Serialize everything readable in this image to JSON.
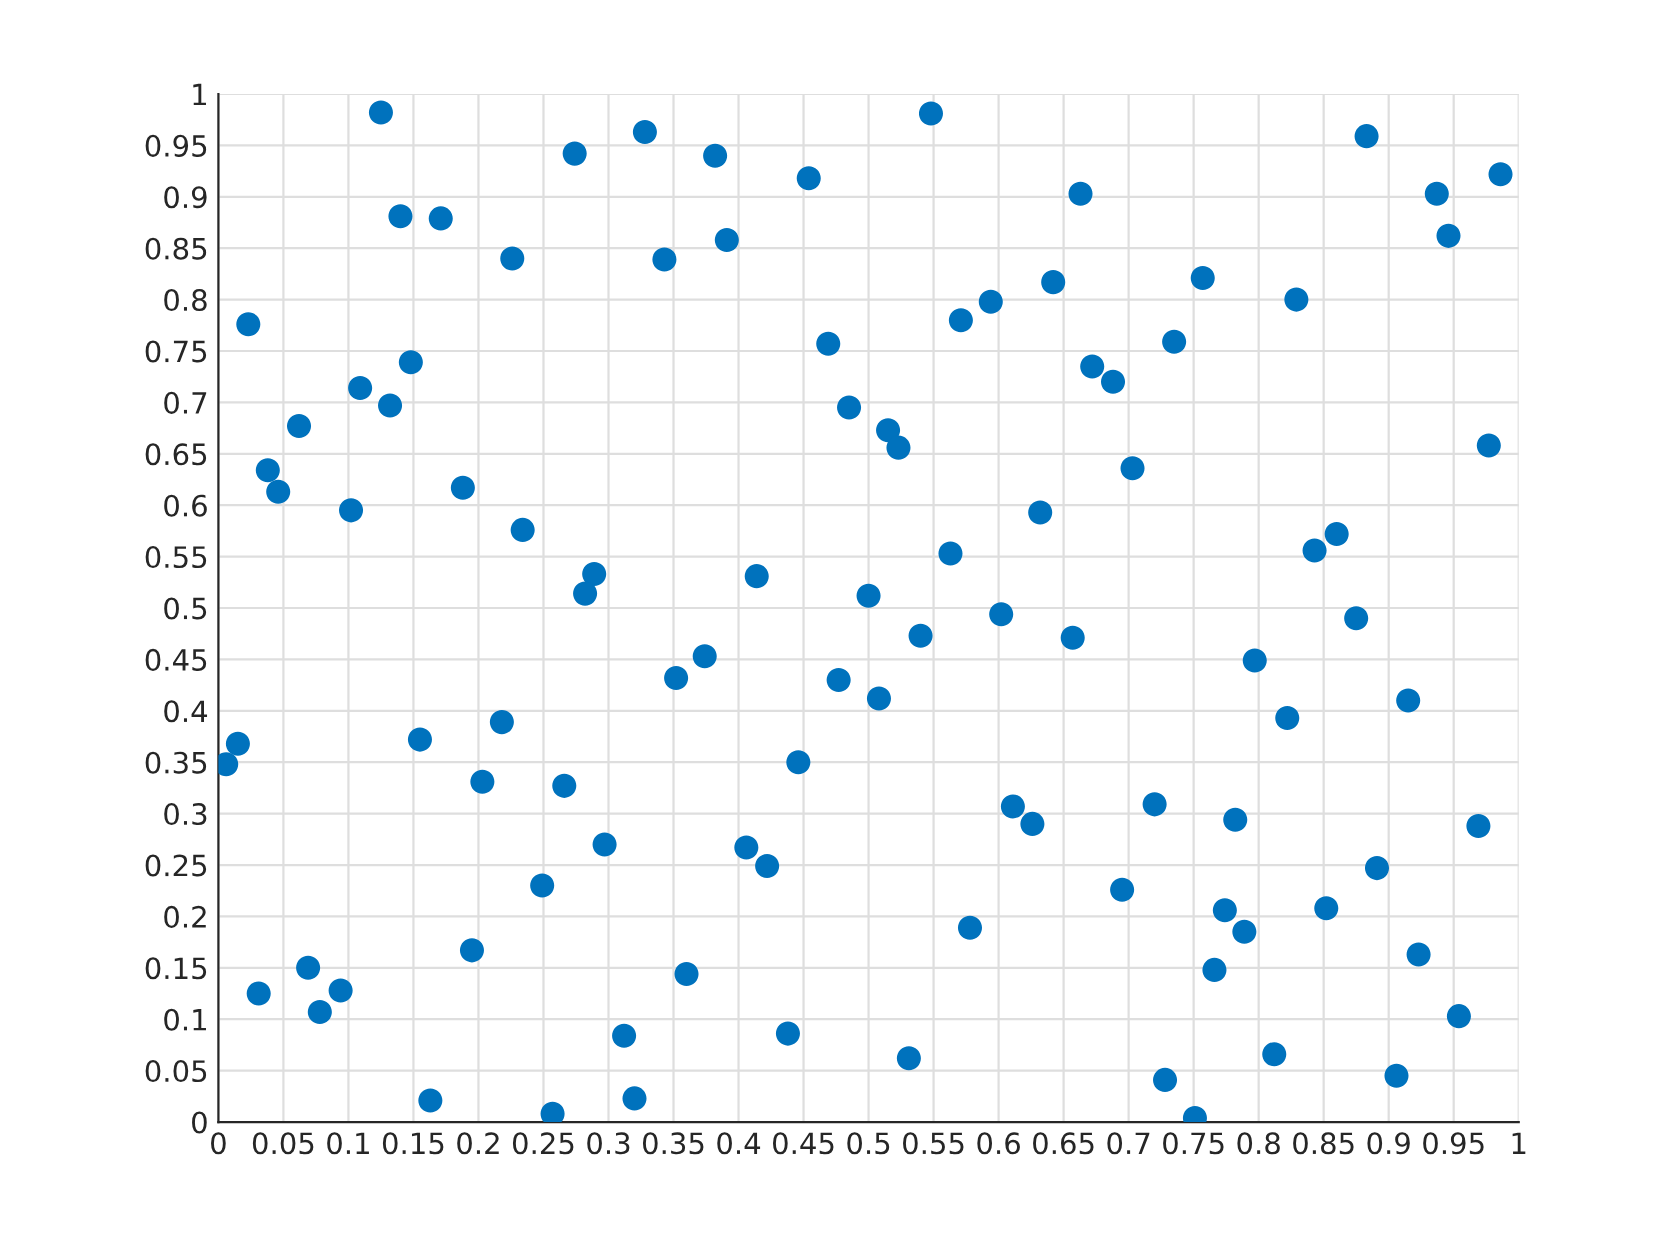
{
  "chart_data": {
    "type": "scatter",
    "marker": "circle",
    "grid": true,
    "xlim": [
      0,
      1
    ],
    "ylim": [
      0,
      1
    ],
    "xticks": [
      0,
      0.05,
      0.1,
      0.15,
      0.2,
      0.25,
      0.3,
      0.35,
      0.4,
      0.45,
      0.5,
      0.55,
      0.6,
      0.65,
      0.7,
      0.75,
      0.8,
      0.85,
      0.9,
      0.95,
      1
    ],
    "yticks": [
      0,
      0.05,
      0.1,
      0.15,
      0.2,
      0.25,
      0.3,
      0.35,
      0.4,
      0.45,
      0.5,
      0.55,
      0.6,
      0.65,
      0.7,
      0.75,
      0.8,
      0.85,
      0.9,
      0.95,
      1
    ],
    "x": [
      0.125,
      0.274,
      0.328,
      0.382,
      0.548,
      0.883,
      0.986,
      0.937,
      0.946,
      0.454,
      0.14,
      0.171,
      0.391,
      0.343,
      0.226,
      0.663,
      0.757,
      0.642,
      0.594,
      0.571,
      0.829,
      0.023,
      0.469,
      0.735,
      0.672,
      0.688,
      0.148,
      0.109,
      0.132,
      0.485,
      0.062,
      0.515,
      0.523,
      0.977,
      0.703,
      0.038,
      0.046,
      0.188,
      0.102,
      0.632,
      0.234,
      0.563,
      0.86,
      0.843,
      0.414,
      0.289,
      0.282,
      0.5,
      0.602,
      0.875,
      0.54,
      0.657,
      0.797,
      0.374,
      0.352,
      0.477,
      0.508,
      0.915,
      0.822,
      0.218,
      0.155,
      0.015,
      0.006,
      0.446,
      0.203,
      0.266,
      0.72,
      0.611,
      0.782,
      0.626,
      0.969,
      0.297,
      0.406,
      0.422,
      0.891,
      0.249,
      0.695,
      0.774,
      0.852,
      0.578,
      0.789,
      0.195,
      0.923,
      0.069,
      0.766,
      0.36,
      0.031,
      0.094,
      0.078,
      0.954,
      0.312,
      0.438,
      0.812,
      0.531,
      0.728,
      0.906,
      0.163,
      0.32,
      0.257,
      0.751
    ],
    "series": [
      {
        "color": "#0072bd",
        "values": [
          0.982,
          0.942,
          0.963,
          0.94,
          0.981,
          0.959,
          0.922,
          0.903,
          0.862,
          0.918,
          0.881,
          0.879,
          0.858,
          0.839,
          0.84,
          0.903,
          0.821,
          0.817,
          0.798,
          0.78,
          0.8,
          0.776,
          0.757,
          0.759,
          0.735,
          0.72,
          0.739,
          0.714,
          0.697,
          0.695,
          0.677,
          0.673,
          0.656,
          0.658,
          0.636,
          0.634,
          0.613,
          0.617,
          0.595,
          0.593,
          0.576,
          0.553,
          0.572,
          0.556,
          0.531,
          0.533,
          0.514,
          0.512,
          0.494,
          0.49,
          0.473,
          0.471,
          0.449,
          0.453,
          0.432,
          0.43,
          0.412,
          0.41,
          0.393,
          0.389,
          0.372,
          0.368,
          0.348,
          0.35,
          0.331,
          0.327,
          0.309,
          0.307,
          0.294,
          0.29,
          0.288,
          0.27,
          0.267,
          0.249,
          0.247,
          0.23,
          0.226,
          0.206,
          0.208,
          0.189,
          0.185,
          0.167,
          0.163,
          0.15,
          0.148,
          0.144,
          0.125,
          0.128,
          0.107,
          0.103,
          0.084,
          0.086,
          0.066,
          0.062,
          0.041,
          0.045,
          0.021,
          0.023,
          0.008,
          0.004
        ]
      }
    ]
  }
}
